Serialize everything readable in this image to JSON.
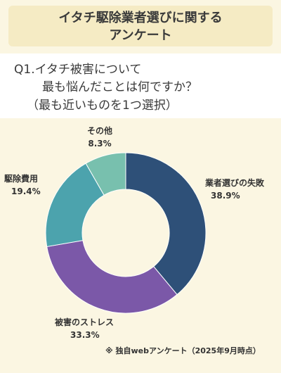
{
  "header": {
    "title_line1": "イタチ駆除業者選びに関する",
    "title_line2": "アンケート"
  },
  "question": {
    "line1": "Q1.イタチ被害について",
    "line2": "最も悩んだことは何ですか？",
    "line3": "（最も近いものを1つ選択）"
  },
  "chart_data": {
    "type": "pie",
    "donut": true,
    "slices": [
      {
        "label": "業者選びの失敗",
        "value": 38.9,
        "value_label": "38.9%",
        "color": "#2e5078"
      },
      {
        "label": "被害のストレス",
        "value": 33.3,
        "value_label": "33.3%",
        "color": "#7b58a8"
      },
      {
        "label": "駆除費用",
        "value": 19.4,
        "value_label": "19.4%",
        "color": "#4ca3ad"
      },
      {
        "label": "その他",
        "value": 8.3,
        "value_label": "8.3%",
        "color": "#78c0ae"
      }
    ],
    "start_angle_deg": 0,
    "direction": "clockwise"
  },
  "footnote": "※ 独自webアンケート（2025年9月時点）"
}
